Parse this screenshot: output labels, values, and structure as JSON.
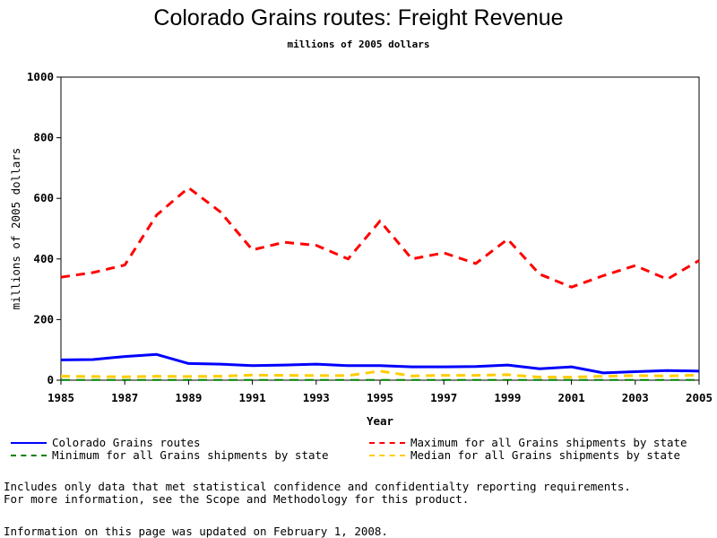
{
  "chart_data": {
    "type": "line",
    "title": "Colorado Grains routes: Freight Revenue",
    "subtitle": "millions of 2005 dollars",
    "xlabel": "Year",
    "ylabel": "millions of 2005 dollars",
    "xlim": [
      1985,
      2005
    ],
    "ylim": [
      0,
      1000
    ],
    "x_ticks": [
      "1985",
      "1987",
      "1989",
      "1991",
      "1993",
      "1995",
      "1997",
      "1999",
      "2001",
      "2003",
      "2005"
    ],
    "y_ticks": [
      "0",
      "200",
      "400",
      "600",
      "800",
      "1000"
    ],
    "grid": false,
    "legend_position": "bottom",
    "x": [
      1985,
      1986,
      1987,
      1988,
      1989,
      1990,
      1991,
      1992,
      1993,
      1994,
      1995,
      1996,
      1997,
      1998,
      1999,
      2000,
      2001,
      2002,
      2003,
      2004,
      2005
    ],
    "series": [
      {
        "name": "Colorado Grains routes",
        "color": "#0000ff",
        "style": "solid",
        "values": [
          67,
          68,
          78,
          85,
          55,
          53,
          48,
          50,
          53,
          48,
          48,
          44,
          44,
          45,
          50,
          38,
          44,
          24,
          28,
          32,
          30
        ]
      },
      {
        "name": "Maximum for all Grains shipments by state",
        "color": "#ff0000",
        "style": "dashed",
        "values": [
          340,
          355,
          380,
          545,
          635,
          555,
          430,
          455,
          445,
          400,
          525,
          400,
          420,
          385,
          465,
          350,
          307,
          345,
          378,
          333,
          395
        ]
      },
      {
        "name": "Minimum for all Grains shipments by state",
        "color": "#008000",
        "style": "dashed",
        "values": [
          1,
          1,
          1,
          1,
          1,
          1,
          1,
          1,
          1,
          1,
          1,
          1,
          1,
          1,
          1,
          1,
          1,
          1,
          1,
          1,
          1
        ]
      },
      {
        "name": "Median for all Grains shipments by state",
        "color": "#ffcc00",
        "style": "dashed",
        "values": [
          13,
          12,
          11,
          13,
          12,
          13,
          17,
          16,
          15,
          15,
          30,
          14,
          16,
          16,
          18,
          10,
          10,
          13,
          15,
          14,
          17
        ]
      }
    ]
  },
  "footnotes": {
    "line1": "Includes only data that met statistical confidence and confidentialty reporting requirements.",
    "line2": "For more information, see the Scope and Methodology for this product.",
    "updated": "Information on this page was updated on February 1, 2008."
  }
}
